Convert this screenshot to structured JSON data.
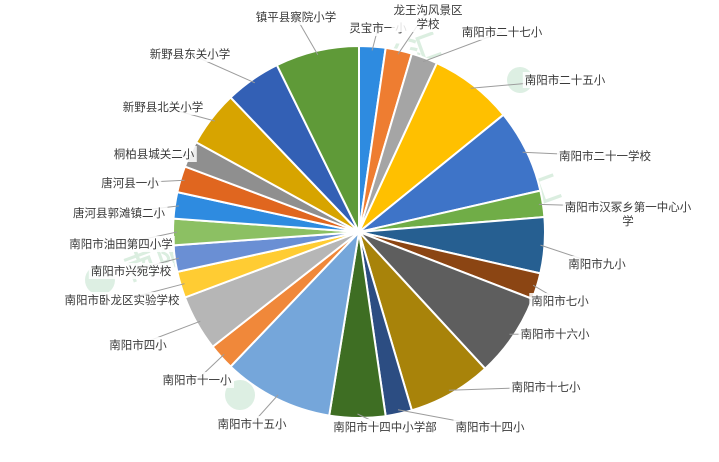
{
  "chart_data": {
    "type": "pie",
    "categories": [
      "灵宝市一小",
      "龙王沟风景区学校",
      "南阳市二十七小",
      "南阳市二十五小",
      "南阳市二十一学校",
      "南阳市汉冢乡第一中心小学",
      "南阳市九小",
      "南阳市七小",
      "南阳市十六小",
      "南阳市十七小",
      "南阳市十四小",
      "南阳市十四中小学部",
      "南阳市十五小",
      "南阳市十一小",
      "南阳市四小",
      "南阳市卧龙区实验学校",
      "南阳市兴宛学校",
      "南阳市油田第四小学",
      "唐河县郭滩镇二小",
      "唐河县一小",
      "桐柏县城关二小",
      "新野县北关小学",
      "新野县东关小学",
      "镇平县察院小学"
    ],
    "values": [
      1.7,
      1.7,
      1.7,
      5.4,
      5.4,
      1.7,
      3.6,
      1.7,
      5.4,
      5.4,
      1.7,
      3.6,
      7.1,
      1.7,
      3.6,
      1.7,
      1.7,
      1.7,
      1.7,
      1.7,
      1.7,
      3.6,
      3.6,
      5.4
    ],
    "colors": [
      "#2E8BE0",
      "#EE7D31",
      "#A5A5A5",
      "#FFC000",
      "#3E74C8",
      "#70AD47",
      "#265F91",
      "#8B4513",
      "#5E5E5E",
      "#A8830A",
      "#2C4D82",
      "#3E6E23",
      "#75A6DA",
      "#F0883A",
      "#B6B6B6",
      "#FFCC33",
      "#6A8FD4",
      "#8CC063",
      "#2E8BE0",
      "#E0661F",
      "#8F8F8F",
      "#D7A400",
      "#3360B5",
      "#5F9A38"
    ]
  },
  "watermark": {
    "text": "南阳家长汇"
  }
}
